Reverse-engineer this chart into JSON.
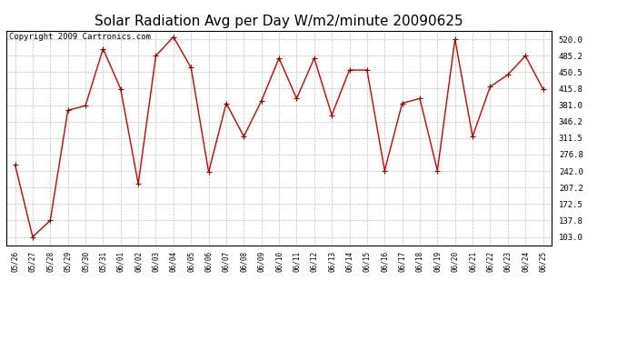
{
  "title": "Solar Radiation Avg per Day W/m2/minute 20090625",
  "copyright": "Copyright 2009 Cartronics.com",
  "dates": [
    "05/26",
    "05/27",
    "05/28",
    "05/29",
    "05/30",
    "05/31",
    "06/01",
    "06/02",
    "06/03",
    "06/04",
    "06/05",
    "06/06",
    "06/07",
    "06/08",
    "06/09",
    "06/10",
    "06/11",
    "06/12",
    "06/13",
    "06/14",
    "06/15",
    "06/16",
    "06/17",
    "06/18",
    "06/19",
    "06/20",
    "06/21",
    "06/22",
    "06/23",
    "06/24",
    "06/25"
  ],
  "values": [
    255,
    103,
    138,
    370,
    380,
    500,
    415,
    215,
    485,
    525,
    460,
    240,
    385,
    315,
    390,
    480,
    395,
    480,
    360,
    455,
    455,
    243,
    385,
    395,
    243,
    520,
    315,
    420,
    445,
    485,
    415
  ],
  "line_color": "#cc0000",
  "marker": "+",
  "marker_color": "#880000",
  "background_color": "#ffffff",
  "plot_bg_color": "#ffffff",
  "grid_color": "#c0c0c0",
  "yticks": [
    103.0,
    137.8,
    172.5,
    207.2,
    242.0,
    276.8,
    311.5,
    346.2,
    381.0,
    415.8,
    450.5,
    485.2,
    520.0
  ],
  "ylim": [
    85,
    538
  ],
  "title_fontsize": 11,
  "copyright_fontsize": 6.5
}
